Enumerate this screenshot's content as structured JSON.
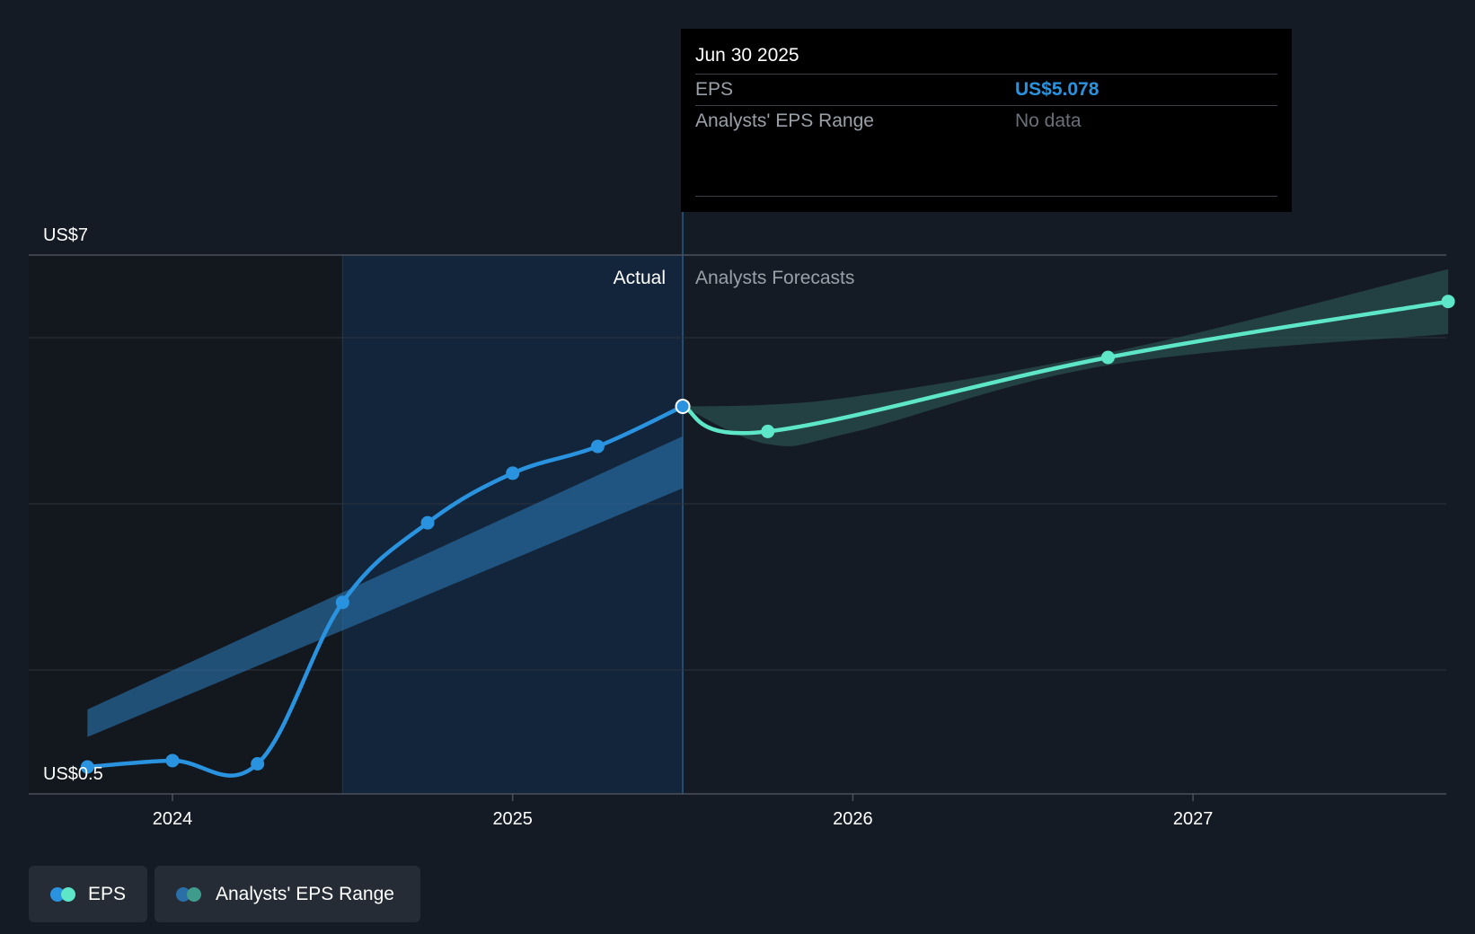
{
  "chart_data": {
    "type": "line",
    "y_axis": {
      "top_label": "US$7",
      "bottom_label": "US$0.5",
      "ylim": [
        0.5,
        7
      ]
    },
    "x_axis": {
      "ticks": [
        "2024",
        "2025",
        "2026",
        "2027"
      ],
      "tick_years": [
        2024,
        2025,
        2026,
        2027
      ],
      "xlim": [
        2023.58,
        2027.75
      ]
    },
    "sections": {
      "actual_label": "Actual",
      "forecast_label": "Analysts Forecasts",
      "divider_x": 2025.5,
      "past_shade_start_x": 2024.5
    },
    "series": [
      {
        "name": "EPS",
        "kind": "actual",
        "color": "#2a93e0",
        "points": [
          {
            "x": 2023.75,
            "y": 0.5
          },
          {
            "x": 2024.0,
            "y": 0.58
          },
          {
            "x": 2024.25,
            "y": 0.54
          },
          {
            "x": 2024.5,
            "y": 2.59
          },
          {
            "x": 2024.75,
            "y": 3.6
          },
          {
            "x": 2025.0,
            "y": 4.23
          },
          {
            "x": 2025.25,
            "y": 4.57
          },
          {
            "x": 2025.5,
            "y": 5.078
          }
        ]
      },
      {
        "name": "EPS",
        "kind": "forecast",
        "color": "#5ee6c8",
        "points": [
          {
            "x": 2025.5,
            "y": 5.078
          },
          {
            "x": 2025.75,
            "y": 4.76
          },
          {
            "x": 2026.75,
            "y": 5.7
          },
          {
            "x": 2027.75,
            "y": 6.41
          }
        ]
      }
    ],
    "ranges": [
      {
        "name": "Analysts' EPS Range",
        "kind": "actual",
        "color": "#2a6fa8",
        "upper": [
          {
            "x": 2023.75,
            "y": 1.23
          },
          {
            "x": 2025.5,
            "y": 4.7
          }
        ],
        "lower": [
          {
            "x": 2023.75,
            "y": 0.88
          },
          {
            "x": 2025.5,
            "y": 4.04
          }
        ]
      },
      {
        "name": "Analysts' EPS Range",
        "kind": "forecast",
        "color": "#2f5f5b",
        "upper": [
          {
            "x": 2025.5,
            "y": 5.078
          },
          {
            "x": 2025.75,
            "y": 5.1
          },
          {
            "x": 2026.0,
            "y": 5.2
          },
          {
            "x": 2026.5,
            "y": 5.55
          },
          {
            "x": 2027.0,
            "y": 6.0
          },
          {
            "x": 2027.75,
            "y": 6.82
          }
        ],
        "lower": [
          {
            "x": 2025.5,
            "y": 5.078
          },
          {
            "x": 2025.75,
            "y": 4.6
          },
          {
            "x": 2026.0,
            "y": 4.75
          },
          {
            "x": 2026.75,
            "y": 5.6
          },
          {
            "x": 2027.75,
            "y": 6.0
          }
        ]
      }
    ],
    "highlight": {
      "x": 2025.5,
      "y": 5.078
    }
  },
  "tooltip": {
    "date": "Jun 30 2025",
    "rows": [
      {
        "label": "EPS",
        "value": "US$5.078",
        "value_color": "#2a93e0"
      },
      {
        "label": "Analysts' EPS Range",
        "value": "No data",
        "value_color": "#6b7078"
      }
    ]
  },
  "legend": {
    "items": [
      {
        "label": "EPS",
        "dot_a": "#2a93e0",
        "dot_b": "#5ee6c8"
      },
      {
        "label": "Analysts' EPS Range",
        "dot_a": "#2a6fa8",
        "dot_b": "#3f9b8c"
      }
    ]
  },
  "colors": {
    "background": "#151b24",
    "grid": "#2c333d",
    "axis": "#4a515c"
  }
}
